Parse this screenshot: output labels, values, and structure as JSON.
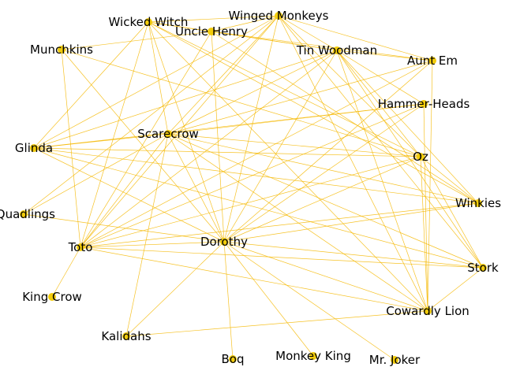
{
  "colors": {
    "edge": "#f5b800",
    "node": "#f2cc0c",
    "label": "#000000",
    "background": "#ffffff"
  },
  "nodes": [
    {
      "id": "wicked-witch",
      "label": "Wicked Witch"
    },
    {
      "id": "winged-monkeys",
      "label": "Winged Monkeys"
    },
    {
      "id": "uncle-henry",
      "label": "Uncle Henry"
    },
    {
      "id": "munchkins",
      "label": "Munchkins"
    },
    {
      "id": "tin-woodman",
      "label": "Tin Woodman"
    },
    {
      "id": "aunt-em",
      "label": "Aunt Em"
    },
    {
      "id": "hammer-heads",
      "label": "Hammer-Heads"
    },
    {
      "id": "scarecrow",
      "label": "Scarecrow"
    },
    {
      "id": "glinda",
      "label": "Glinda"
    },
    {
      "id": "oz",
      "label": "Oz"
    },
    {
      "id": "winkies",
      "label": "Winkies"
    },
    {
      "id": "quadlings",
      "label": "Quadlings"
    },
    {
      "id": "toto",
      "label": "Toto"
    },
    {
      "id": "dorothy",
      "label": "Dorothy"
    },
    {
      "id": "stork",
      "label": "Stork"
    },
    {
      "id": "king-crow",
      "label": "King Crow"
    },
    {
      "id": "cowardly-lion",
      "label": "Cowardly Lion"
    },
    {
      "id": "kalidahs",
      "label": "Kalidahs"
    },
    {
      "id": "boq",
      "label": "Boq"
    },
    {
      "id": "monkey-king",
      "label": "Monkey King"
    },
    {
      "id": "mr-joker",
      "label": "Mr. Joker"
    }
  ],
  "edges": [
    [
      "wicked-witch",
      "winged-monkeys"
    ],
    [
      "wicked-witch",
      "tin-woodman"
    ],
    [
      "wicked-witch",
      "scarecrow"
    ],
    [
      "wicked-witch",
      "dorothy"
    ],
    [
      "wicked-witch",
      "toto"
    ],
    [
      "wicked-witch",
      "glinda"
    ],
    [
      "wicked-witch",
      "winkies"
    ],
    [
      "wicked-witch",
      "cowardly-lion"
    ],
    [
      "wicked-witch",
      "oz"
    ],
    [
      "wicked-witch",
      "uncle-henry"
    ],
    [
      "winged-monkeys",
      "tin-woodman"
    ],
    [
      "winged-monkeys",
      "scarecrow"
    ],
    [
      "winged-monkeys",
      "dorothy"
    ],
    [
      "winged-monkeys",
      "toto"
    ],
    [
      "winged-monkeys",
      "glinda"
    ],
    [
      "winged-monkeys",
      "oz"
    ],
    [
      "winged-monkeys",
      "aunt-em"
    ],
    [
      "winged-monkeys",
      "uncle-henry"
    ],
    [
      "winged-monkeys",
      "stork"
    ],
    [
      "winged-monkeys",
      "cowardly-lion"
    ],
    [
      "winged-monkeys",
      "quadlings"
    ],
    [
      "uncle-henry",
      "aunt-em"
    ],
    [
      "uncle-henry",
      "dorothy"
    ],
    [
      "uncle-henry",
      "toto"
    ],
    [
      "uncle-henry",
      "tin-woodman"
    ],
    [
      "uncle-henry",
      "winkies"
    ],
    [
      "munchkins",
      "dorothy"
    ],
    [
      "munchkins",
      "toto"
    ],
    [
      "munchkins",
      "oz"
    ],
    [
      "munchkins",
      "uncle-henry"
    ],
    [
      "tin-woodman",
      "aunt-em"
    ],
    [
      "tin-woodman",
      "scarecrow"
    ],
    [
      "tin-woodman",
      "dorothy"
    ],
    [
      "tin-woodman",
      "toto"
    ],
    [
      "tin-woodman",
      "oz"
    ],
    [
      "tin-woodman",
      "winkies"
    ],
    [
      "tin-woodman",
      "cowardly-lion"
    ],
    [
      "tin-woodman",
      "stork"
    ],
    [
      "tin-woodman",
      "hammer-heads"
    ],
    [
      "tin-woodman",
      "glinda"
    ],
    [
      "aunt-em",
      "dorothy"
    ],
    [
      "aunt-em",
      "toto"
    ],
    [
      "aunt-em",
      "scarecrow"
    ],
    [
      "aunt-em",
      "cowardly-lion"
    ],
    [
      "hammer-heads",
      "scarecrow"
    ],
    [
      "hammer-heads",
      "dorothy"
    ],
    [
      "hammer-heads",
      "toto"
    ],
    [
      "hammer-heads",
      "glinda"
    ],
    [
      "hammer-heads",
      "cowardly-lion"
    ],
    [
      "scarecrow",
      "dorothy"
    ],
    [
      "scarecrow",
      "toto"
    ],
    [
      "scarecrow",
      "glinda"
    ],
    [
      "scarecrow",
      "oz"
    ],
    [
      "scarecrow",
      "winkies"
    ],
    [
      "scarecrow",
      "stork"
    ],
    [
      "scarecrow",
      "cowardly-lion"
    ],
    [
      "scarecrow",
      "kalidahs"
    ],
    [
      "scarecrow",
      "quadlings"
    ],
    [
      "glinda",
      "dorothy"
    ],
    [
      "glinda",
      "oz"
    ],
    [
      "glinda",
      "winkies"
    ],
    [
      "glinda",
      "stork"
    ],
    [
      "oz",
      "dorothy"
    ],
    [
      "oz",
      "toto"
    ],
    [
      "oz",
      "winkies"
    ],
    [
      "oz",
      "cowardly-lion"
    ],
    [
      "oz",
      "stork"
    ],
    [
      "winkies",
      "dorothy"
    ],
    [
      "winkies",
      "toto"
    ],
    [
      "quadlings",
      "dorothy"
    ],
    [
      "toto",
      "dorothy"
    ],
    [
      "toto",
      "cowardly-lion"
    ],
    [
      "toto",
      "stork"
    ],
    [
      "toto",
      "king-crow"
    ],
    [
      "dorothy",
      "stork"
    ],
    [
      "dorothy",
      "cowardly-lion"
    ],
    [
      "dorothy",
      "kalidahs"
    ],
    [
      "dorothy",
      "boq"
    ],
    [
      "dorothy",
      "monkey-king"
    ],
    [
      "dorothy",
      "mr-joker"
    ],
    [
      "stork",
      "cowardly-lion"
    ],
    [
      "kalidahs",
      "cowardly-lion"
    ]
  ]
}
